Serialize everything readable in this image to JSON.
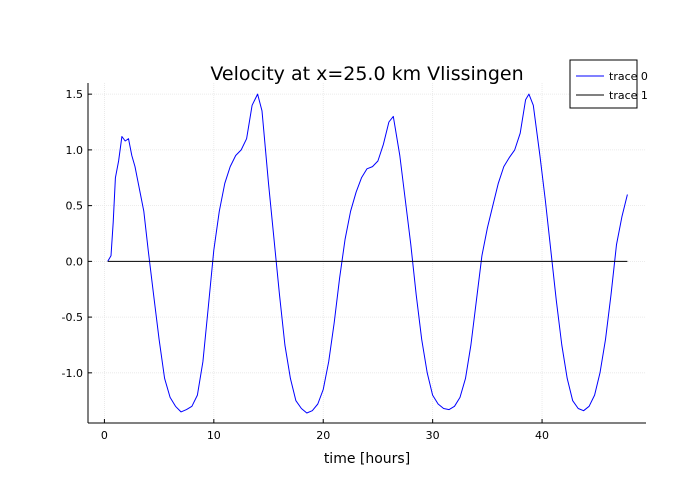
{
  "chart_data": {
    "type": "line",
    "title": "Velocity at x=25.0 km Vlissingen",
    "xlabel": "time [hours]",
    "ylabel": "",
    "xlim": [
      -1.5,
      49.5
    ],
    "ylim": [
      -1.45,
      1.6
    ],
    "xticks": [
      0,
      10,
      20,
      30,
      40
    ],
    "xtick_labels": [
      "0",
      "10",
      "20",
      "30",
      "40"
    ],
    "yticks": [
      -1.0,
      -0.5,
      0.0,
      0.5,
      1.0,
      1.5
    ],
    "ytick_labels": [
      "-1.0",
      "-0.5",
      "0.0",
      "0.5",
      "1.0",
      "1.5"
    ],
    "grid": true,
    "legend_position": "top-right",
    "series": [
      {
        "name": "trace 0",
        "color": "#0000ff",
        "points": [
          [
            0.3,
            0.0
          ],
          [
            0.6,
            0.05
          ],
          [
            0.8,
            0.35
          ],
          [
            1.0,
            0.75
          ],
          [
            1.3,
            0.9
          ],
          [
            1.6,
            1.12
          ],
          [
            1.9,
            1.08
          ],
          [
            2.2,
            1.1
          ],
          [
            2.5,
            0.95
          ],
          [
            2.8,
            0.85
          ],
          [
            3.0,
            0.75
          ],
          [
            3.3,
            0.6
          ],
          [
            3.6,
            0.45
          ],
          [
            4.0,
            0.1
          ],
          [
            4.5,
            -0.3
          ],
          [
            5.0,
            -0.7
          ],
          [
            5.5,
            -1.05
          ],
          [
            6.0,
            -1.22
          ],
          [
            6.5,
            -1.3
          ],
          [
            7.0,
            -1.35
          ],
          [
            7.5,
            -1.33
          ],
          [
            8.0,
            -1.3
          ],
          [
            8.5,
            -1.2
          ],
          [
            9.0,
            -0.9
          ],
          [
            9.5,
            -0.4
          ],
          [
            10.0,
            0.1
          ],
          [
            10.5,
            0.45
          ],
          [
            11.0,
            0.7
          ],
          [
            11.5,
            0.85
          ],
          [
            12.0,
            0.95
          ],
          [
            12.5,
            1.0
          ],
          [
            13.0,
            1.1
          ],
          [
            13.5,
            1.4
          ],
          [
            14.0,
            1.5
          ],
          [
            14.4,
            1.35
          ],
          [
            15.0,
            0.7
          ],
          [
            15.5,
            0.2
          ],
          [
            16.0,
            -0.3
          ],
          [
            16.5,
            -0.75
          ],
          [
            17.0,
            -1.05
          ],
          [
            17.5,
            -1.25
          ],
          [
            18.0,
            -1.32
          ],
          [
            18.5,
            -1.36
          ],
          [
            19.0,
            -1.34
          ],
          [
            19.5,
            -1.28
          ],
          [
            20.0,
            -1.15
          ],
          [
            20.5,
            -0.9
          ],
          [
            21.0,
            -0.55
          ],
          [
            21.5,
            -0.15
          ],
          [
            22.0,
            0.2
          ],
          [
            22.5,
            0.45
          ],
          [
            23.0,
            0.62
          ],
          [
            23.5,
            0.75
          ],
          [
            24.0,
            0.83
          ],
          [
            24.5,
            0.85
          ],
          [
            25.0,
            0.9
          ],
          [
            25.5,
            1.05
          ],
          [
            26.0,
            1.25
          ],
          [
            26.4,
            1.3
          ],
          [
            27.0,
            0.95
          ],
          [
            27.5,
            0.55
          ],
          [
            28.0,
            0.15
          ],
          [
            28.5,
            -0.3
          ],
          [
            29.0,
            -0.7
          ],
          [
            29.5,
            -1.0
          ],
          [
            30.0,
            -1.2
          ],
          [
            30.5,
            -1.28
          ],
          [
            31.0,
            -1.32
          ],
          [
            31.5,
            -1.33
          ],
          [
            32.0,
            -1.3
          ],
          [
            32.5,
            -1.22
          ],
          [
            33.0,
            -1.05
          ],
          [
            33.5,
            -0.75
          ],
          [
            34.0,
            -0.35
          ],
          [
            34.5,
            0.05
          ],
          [
            35.0,
            0.3
          ],
          [
            35.5,
            0.5
          ],
          [
            36.0,
            0.7
          ],
          [
            36.5,
            0.85
          ],
          [
            37.0,
            0.93
          ],
          [
            37.5,
            1.0
          ],
          [
            38.0,
            1.15
          ],
          [
            38.5,
            1.45
          ],
          [
            38.8,
            1.5
          ],
          [
            39.2,
            1.4
          ],
          [
            39.8,
            0.95
          ],
          [
            40.3,
            0.55
          ],
          [
            40.8,
            0.1
          ],
          [
            41.3,
            -0.35
          ],
          [
            41.8,
            -0.75
          ],
          [
            42.3,
            -1.05
          ],
          [
            42.8,
            -1.25
          ],
          [
            43.3,
            -1.32
          ],
          [
            43.8,
            -1.34
          ],
          [
            44.3,
            -1.3
          ],
          [
            44.8,
            -1.2
          ],
          [
            45.3,
            -1.0
          ],
          [
            45.8,
            -0.7
          ],
          [
            46.3,
            -0.3
          ],
          [
            46.8,
            0.15
          ],
          [
            47.3,
            0.4
          ],
          [
            47.8,
            0.6
          ]
        ]
      },
      {
        "name": "trace 1",
        "color": "#000000",
        "points": [
          [
            0.3,
            0.0
          ],
          [
            47.8,
            0.0
          ]
        ]
      }
    ]
  }
}
